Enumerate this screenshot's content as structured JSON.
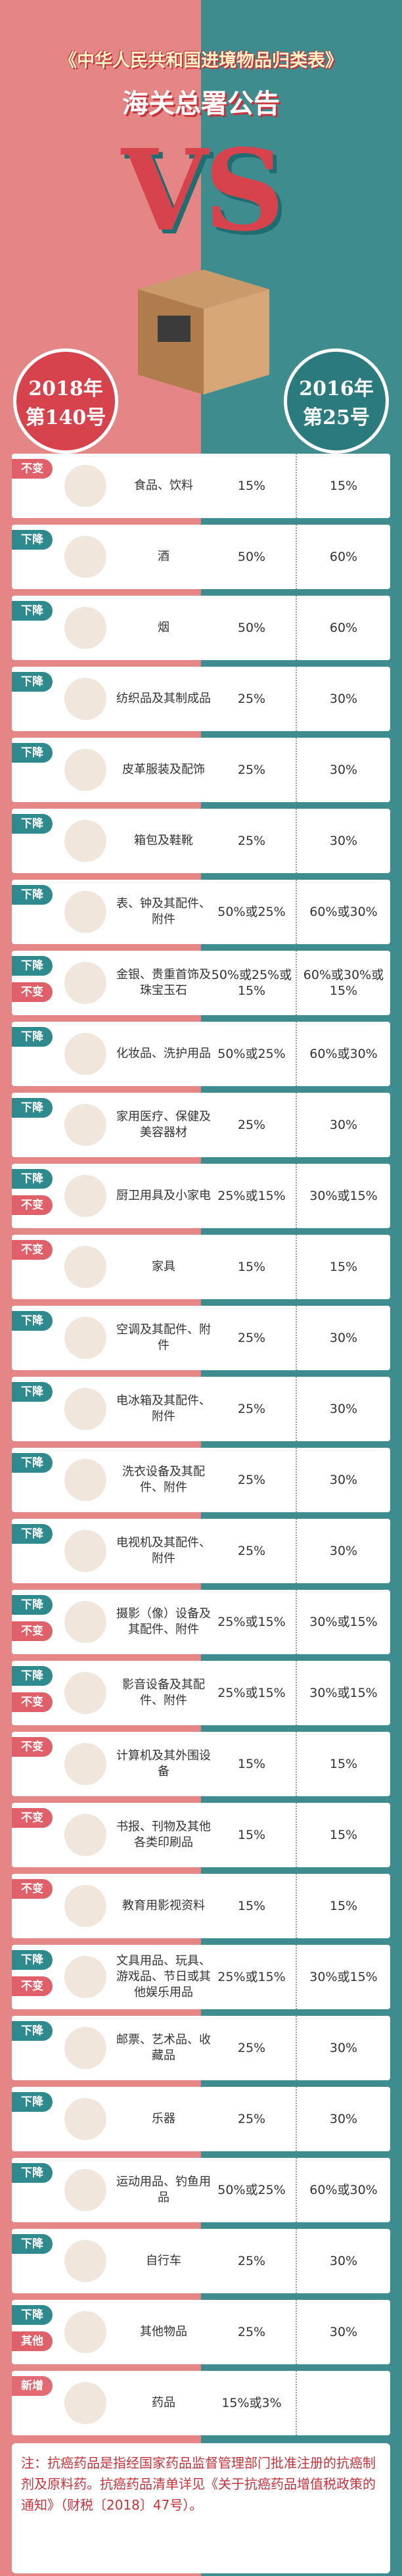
{
  "header": {
    "title": "《中华人民共和国进境物品归类表》",
    "subtitle": "海关总署公告",
    "vs": "VS",
    "left": {
      "year": "2018年",
      "number": "第140号"
    },
    "right": {
      "year": "2016年",
      "number": "第25号"
    }
  },
  "rows": [
    {
      "tags": [
        "不变"
      ],
      "name": "食品、饮料",
      "rate_2018": "15%",
      "rate_2016": "15%"
    },
    {
      "tags": [
        "下降"
      ],
      "name": "酒",
      "rate_2018": "50%",
      "rate_2016": "60%"
    },
    {
      "tags": [
        "下降"
      ],
      "name": "烟",
      "rate_2018": "50%",
      "rate_2016": "60%"
    },
    {
      "tags": [
        "下降"
      ],
      "name": "纺织品及其制成品",
      "rate_2018": "25%",
      "rate_2016": "30%"
    },
    {
      "tags": [
        "下降"
      ],
      "name": "皮革服装及配饰",
      "rate_2018": "25%",
      "rate_2016": "30%"
    },
    {
      "tags": [
        "下降"
      ],
      "name": "箱包及鞋靴",
      "rate_2018": "25%",
      "rate_2016": "30%"
    },
    {
      "tags": [
        "下降"
      ],
      "name": "表、钟及其配件、附件",
      "rate_2018": "50%或25%",
      "rate_2016": "60%或30%"
    },
    {
      "tags": [
        "下降",
        "不变"
      ],
      "name": "金银、贵重首饰及珠宝玉石",
      "rate_2018": "50%或25%或15%",
      "rate_2016": "60%或30%或15%"
    },
    {
      "tags": [
        "下降"
      ],
      "name": "化妆品、洗护用品",
      "rate_2018": "50%或25%",
      "rate_2016": "60%或30%"
    },
    {
      "tags": [
        "下降"
      ],
      "name": "家用医疗、保健及美容器材",
      "rate_2018": "25%",
      "rate_2016": "30%"
    },
    {
      "tags": [
        "下降",
        "不变"
      ],
      "name": "厨卫用具及小家电",
      "rate_2018": "25%或15%",
      "rate_2016": "30%或15%"
    },
    {
      "tags": [
        "不变"
      ],
      "name": "家具",
      "rate_2018": "15%",
      "rate_2016": "15%"
    },
    {
      "tags": [
        "下降"
      ],
      "name": "空调及其配件、附件",
      "rate_2018": "25%",
      "rate_2016": "30%"
    },
    {
      "tags": [
        "下降"
      ],
      "name": "电冰箱及其配件、附件",
      "rate_2018": "25%",
      "rate_2016": "30%"
    },
    {
      "tags": [
        "下降"
      ],
      "name": "洗衣设备及其配件、附件",
      "rate_2018": "25%",
      "rate_2016": "30%"
    },
    {
      "tags": [
        "下降"
      ],
      "name": "电视机及其配件、附件",
      "rate_2018": "25%",
      "rate_2016": "30%"
    },
    {
      "tags": [
        "下降",
        "不变"
      ],
      "name": "摄影（像）设备及其配件、附件",
      "rate_2018": "25%或15%",
      "rate_2016": "30%或15%"
    },
    {
      "tags": [
        "下降",
        "不变"
      ],
      "name": "影音设备及其配件、附件",
      "rate_2018": "25%或15%",
      "rate_2016": "30%或15%"
    },
    {
      "tags": [
        "不变"
      ],
      "name": "计算机及其外围设备",
      "rate_2018": "15%",
      "rate_2016": "15%"
    },
    {
      "tags": [
        "不变"
      ],
      "name": "书报、刊物及其他各类印刷品",
      "rate_2018": "15%",
      "rate_2016": "15%"
    },
    {
      "tags": [
        "不变"
      ],
      "name": "教育用影视资料",
      "rate_2018": "15%",
      "rate_2016": "15%"
    },
    {
      "tags": [
        "下降",
        "不变"
      ],
      "name": "文具用品、玩具、游戏品、节日或其他娱乐用品",
      "rate_2018": "25%或15%",
      "rate_2016": "30%或15%"
    },
    {
      "tags": [
        "下降"
      ],
      "name": "邮票、艺术品、收藏品",
      "rate_2018": "25%",
      "rate_2016": "30%"
    },
    {
      "tags": [
        "下降"
      ],
      "name": "乐器",
      "rate_2018": "25%",
      "rate_2016": "30%"
    },
    {
      "tags": [
        "下降"
      ],
      "name": "运动用品、钓鱼用品",
      "rate_2018": "50%或25%",
      "rate_2016": "60%或30%"
    },
    {
      "tags": [
        "下降"
      ],
      "name": "自行车",
      "rate_2018": "25%",
      "rate_2016": "30%"
    },
    {
      "tags": [
        "下降",
        "其他"
      ],
      "name": "其他物品",
      "rate_2018": "25%",
      "rate_2016": "30%"
    },
    {
      "tags": [
        "新增"
      ],
      "name": "药品",
      "rate_2018": "15%或3%",
      "rate_2016": null
    }
  ],
  "footer": {
    "note": "注：抗癌药品是指经国家药品监督管理部门批准注册的抗癌制剂及原料药。抗癌药品清单详见《关于抗癌药品增值税政策的通知》（财税〔2018〕47号）。"
  }
}
